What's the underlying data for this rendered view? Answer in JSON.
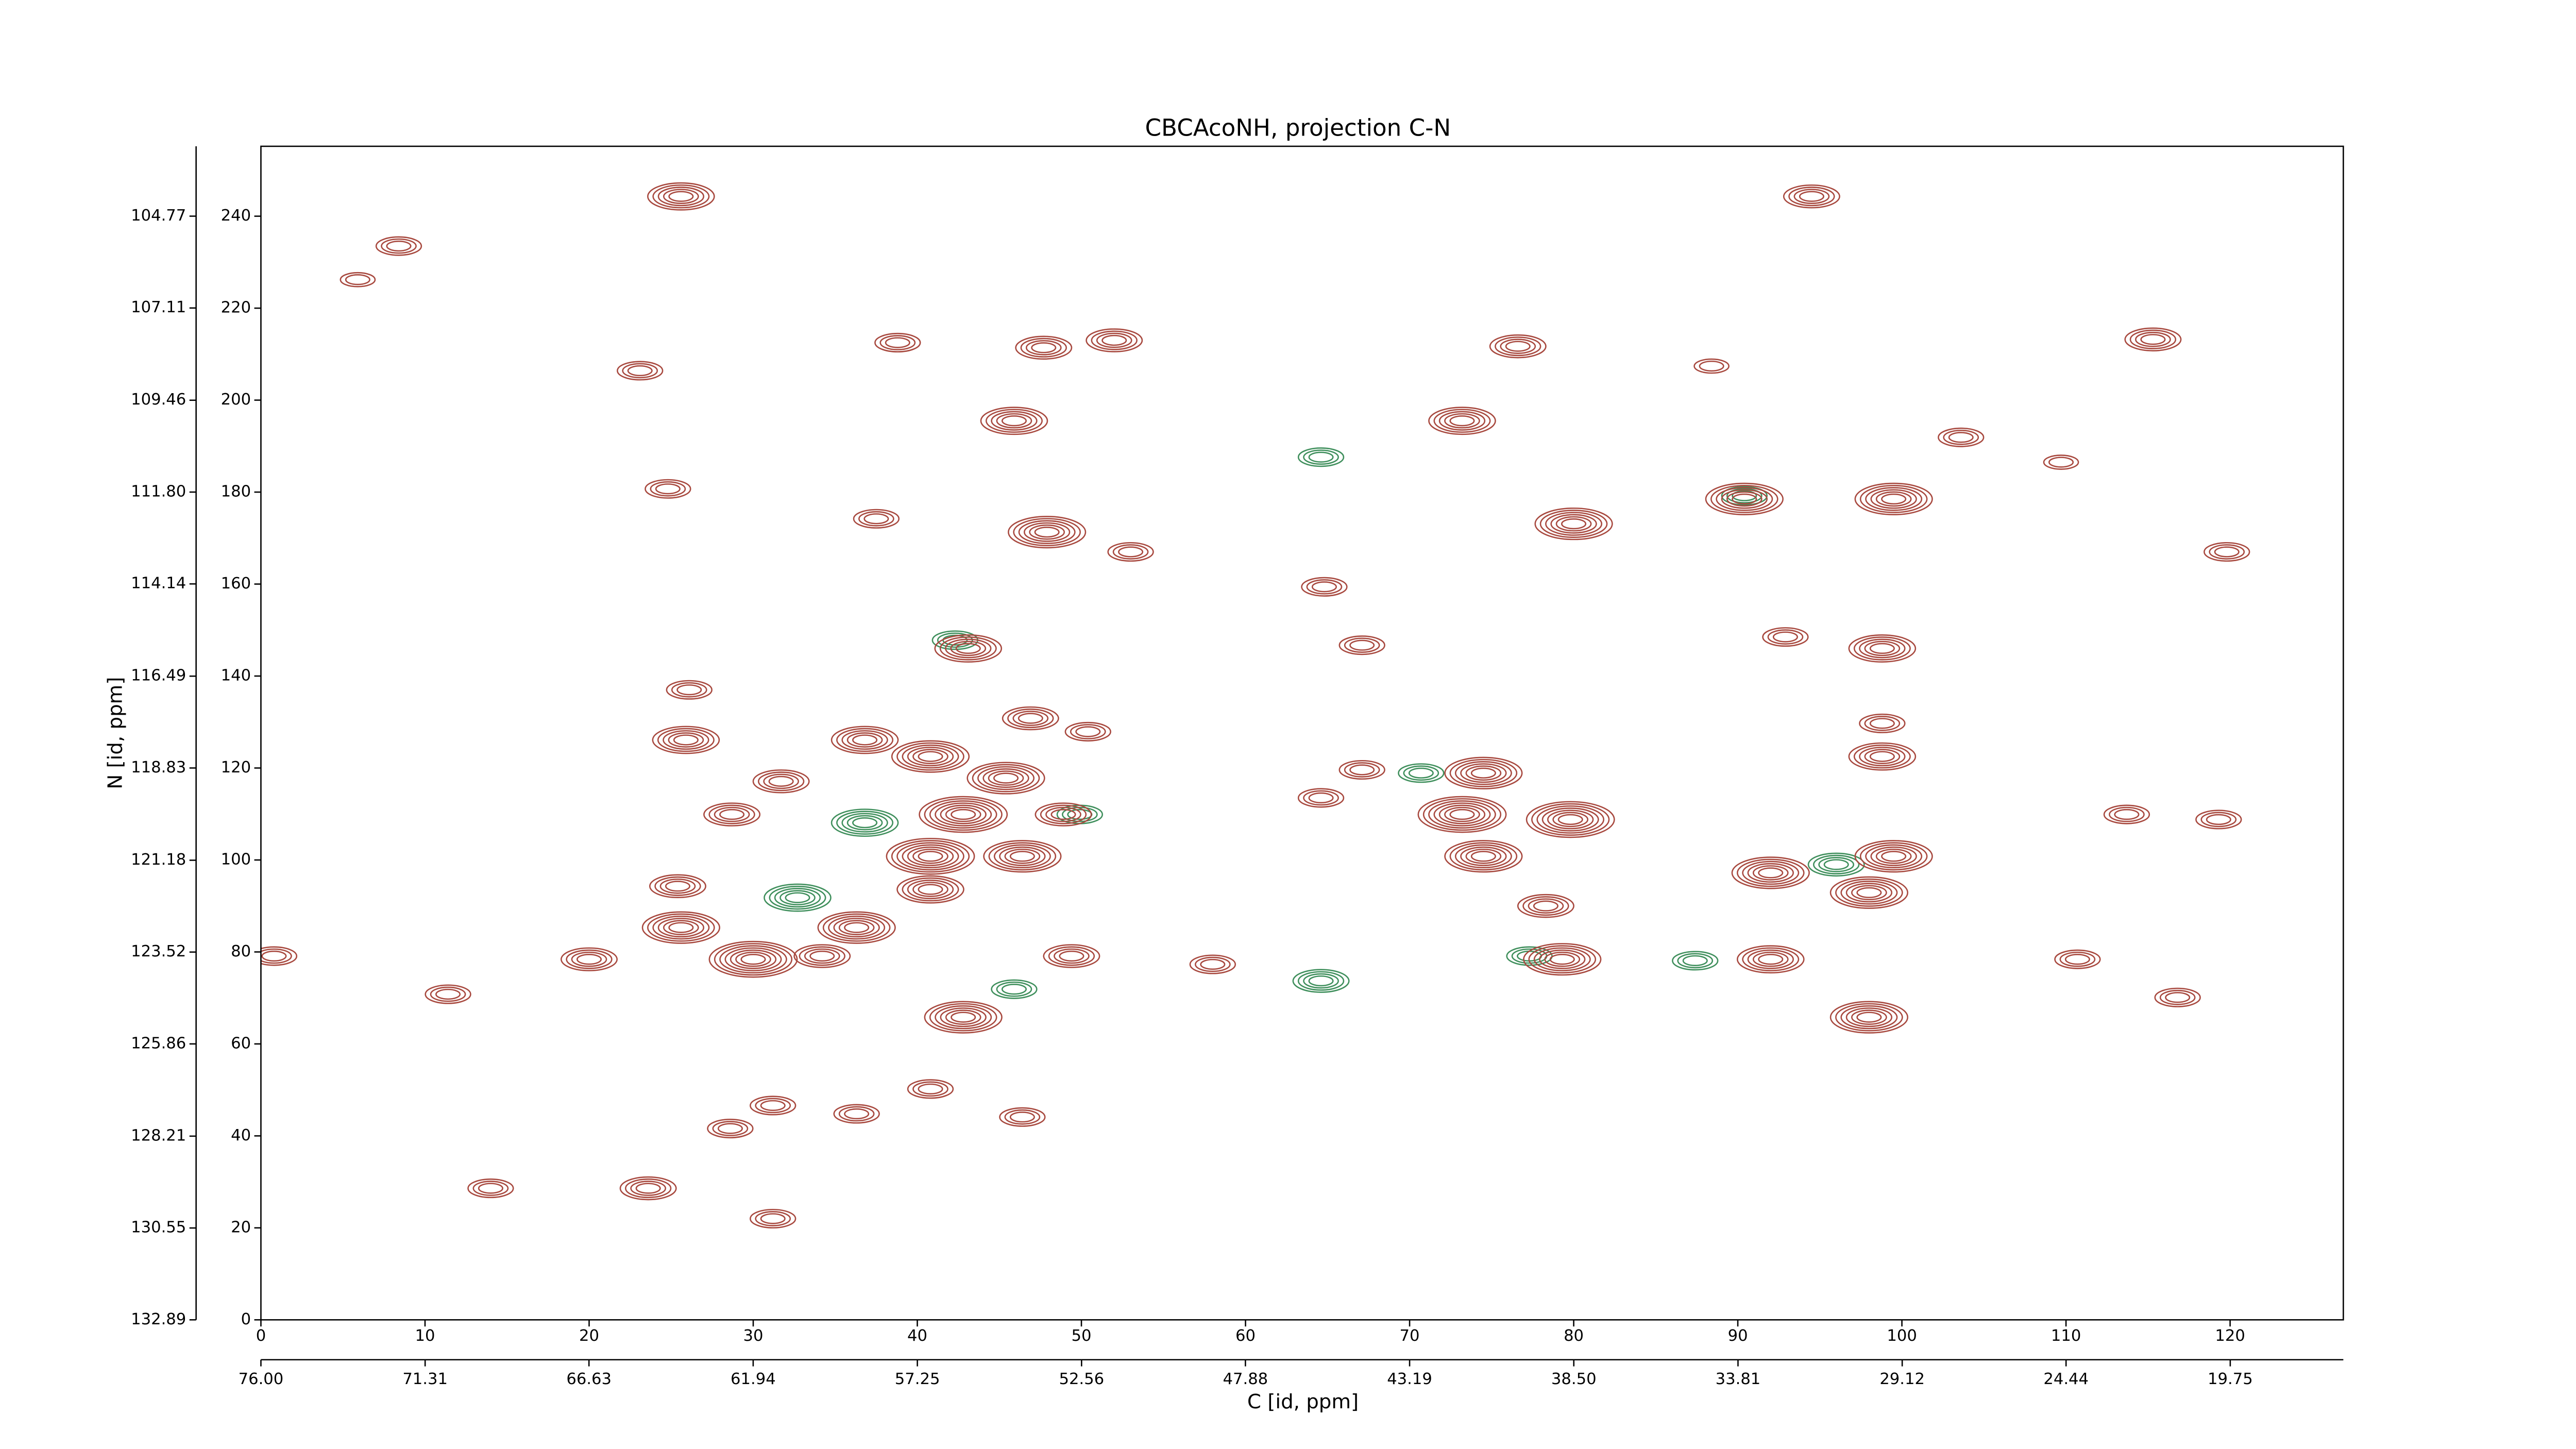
{
  "chart_data": {
    "type": "contour",
    "title": "CBCAcoNH, projection C-N",
    "xlabel": "C [id, ppm]",
    "ylabel": "N [id, ppm]",
    "xlim": [
      0,
      126.9
    ],
    "ylim": [
      0,
      255.2
    ],
    "xticks": [
      0,
      10,
      20,
      30,
      40,
      50,
      60,
      70,
      80,
      90,
      100,
      110,
      120
    ],
    "yticks": [
      0,
      20,
      40,
      60,
      80,
      100,
      120,
      140,
      160,
      180,
      200,
      220,
      240
    ],
    "x2lim": [
      76,
      16.52
    ],
    "x2ticks": [
      {
        "value": 76,
        "label": "76.00"
      },
      71.31,
      66.63,
      61.94,
      57.25,
      52.56,
      47.88,
      43.19,
      {
        "value": 38.5,
        "label": "38.50"
      },
      33.81,
      29.12,
      24.44,
      19.75
    ],
    "y2lim": [
      132.89,
      102.99
    ],
    "y2ticks": [
      104.77,
      107.11,
      109.46,
      {
        "value": 111.8,
        "label": "111.80"
      },
      114.14,
      116.49,
      118.83,
      121.18,
      123.52,
      125.86,
      128.21,
      130.55,
      132.89
    ],
    "series": [
      {
        "color": "#3f8f5c",
        "x": [
          36.8,
          32.7,
          64.6,
          64.6,
          49.9,
          70.7,
          96,
          87.4,
          77.3,
          45.9,
          42.3,
          90.4
        ],
        "y": [
          108.1,
          91.8,
          73.7,
          187.6,
          109.9,
          118.9,
          99,
          78.1,
          79.1,
          71.9,
          147.8,
          179.2
        ],
        "levels": [
          5,
          5,
          4,
          3,
          3,
          3,
          4,
          3,
          3,
          3,
          3,
          3
        ]
      },
      {
        "color": "#a8493f",
        "x": [
          25.6,
          38.8,
          47.7,
          52,
          45.9,
          73.2,
          76.6,
          115.3,
          94.5,
          24.8,
          37.5,
          47.9,
          53,
          80,
          90.4,
          99.5,
          119.8,
          64.8,
          67.1,
          43.1,
          98.8,
          92.9,
          25.9,
          26.1,
          36.8,
          40.8,
          46.9,
          50.4,
          45.4,
          42.8,
          40.8,
          46.4,
          48.9,
          31.7,
          28.7,
          64.6,
          67.1,
          73.2,
          74.5,
          74.5,
          79.8,
          98.8,
          98.8,
          99.5,
          98,
          92,
          92,
          25.4,
          25.6,
          30,
          34.2,
          36.3,
          40.8,
          42.8,
          49.4,
          79.3,
          78.3,
          98,
          20,
          0.8,
          31.2,
          36.3,
          28.6,
          23.6,
          31.2,
          14,
          116.8,
          110.7,
          119.3,
          113.7,
          40.8,
          46.4,
          58,
          11.4,
          23.1,
          8.4,
          5.9,
          88.4,
          103.6,
          109.7
        ],
        "y": [
          244.3,
          212.5,
          211.4,
          213,
          195.5,
          195.5,
          211.7,
          213.2,
          244.3,
          180.7,
          174.2,
          171.3,
          167,
          173.1,
          178.5,
          178.5,
          167,
          159.4,
          146.7,
          146,
          146,
          148.5,
          126.1,
          137,
          126.1,
          122.5,
          130.8,
          127.9,
          117.8,
          109.9,
          100.8,
          100.8,
          109.9,
          117.1,
          109.9,
          113.5,
          119.6,
          109.9,
          118.9,
          100.8,
          108.8,
          122.5,
          129.7,
          100.8,
          92.9,
          97.2,
          78.4,
          94.3,
          85.3,
          78.4,
          79.1,
          85.3,
          93.6,
          65.8,
          79.1,
          78.4,
          90,
          65.8,
          78.4,
          79.1,
          46.6,
          44.8,
          41.6,
          28.6,
          22,
          28.6,
          70.1,
          78.4,
          108.8,
          109.9,
          50.2,
          44.1,
          77.3,
          70.8,
          206.4,
          233.5,
          226.2,
          207.4,
          191.9,
          186.5
        ],
        "levels": [
          5,
          3,
          4,
          4,
          5,
          5,
          4,
          4,
          4,
          3,
          3,
          6,
          3,
          6,
          6,
          6,
          3,
          3,
          3,
          5,
          5,
          3,
          5,
          3,
          5,
          6,
          4,
          3,
          6,
          7,
          7,
          6,
          4,
          4,
          4,
          3,
          3,
          7,
          6,
          6,
          7,
          5,
          3,
          6,
          6,
          6,
          5,
          4,
          6,
          7,
          4,
          6,
          5,
          6,
          4,
          6,
          4,
          6,
          4,
          3,
          3,
          3,
          3,
          4,
          3,
          3,
          3,
          3,
          3,
          3,
          3,
          3,
          3,
          3,
          3,
          3,
          2,
          2,
          3,
          2
        ]
      }
    ]
  }
}
